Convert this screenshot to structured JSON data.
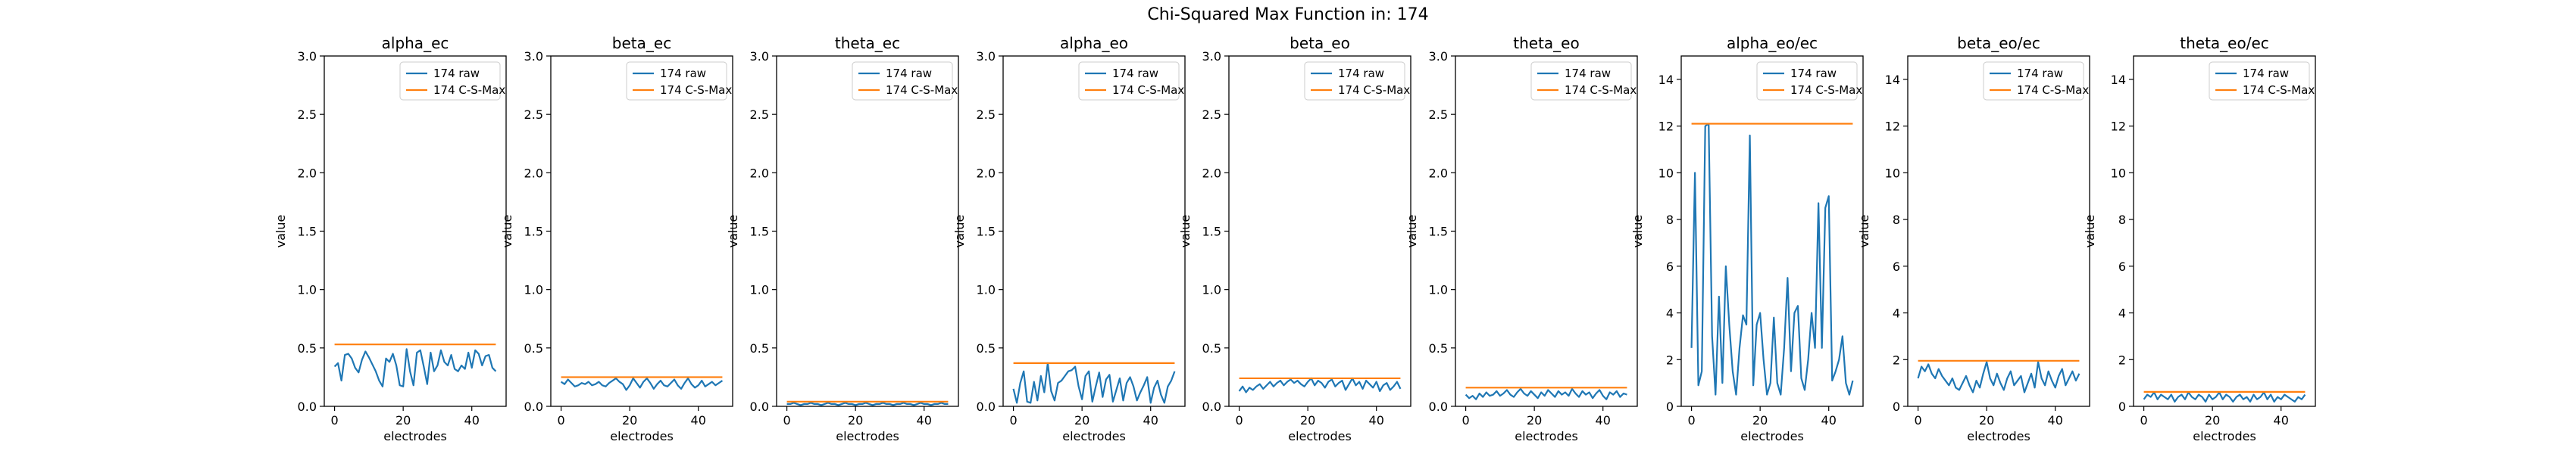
{
  "figure": {
    "title": "Chi-Squared Max Function in: 174",
    "colors": {
      "raw": "#1f77b4",
      "csmax": "#ff7f0e",
      "axis": "#000000",
      "legend_border": "#cccccc"
    }
  },
  "chart_data": [
    {
      "type": "line",
      "title": "alpha_ec",
      "xlabel": "electrodes",
      "ylabel": "value",
      "xlim": [
        -3,
        50
      ],
      "ylim": [
        0,
        3.0
      ],
      "xticks": [
        0,
        20,
        40
      ],
      "yticks": [
        0.0,
        0.5,
        1.0,
        1.5,
        2.0,
        2.5,
        3.0
      ],
      "ytick_labels": [
        "0.0",
        "0.5",
        "1.0",
        "1.5",
        "2.0",
        "2.5",
        "3.0"
      ],
      "legend": "top-right",
      "series": [
        {
          "name": "174 raw",
          "x_start": 0,
          "values": [
            0.34,
            0.37,
            0.22,
            0.44,
            0.45,
            0.41,
            0.33,
            0.29,
            0.4,
            0.47,
            0.42,
            0.36,
            0.3,
            0.22,
            0.17,
            0.41,
            0.38,
            0.45,
            0.35,
            0.18,
            0.17,
            0.49,
            0.3,
            0.18,
            0.46,
            0.48,
            0.34,
            0.19,
            0.46,
            0.3,
            0.35,
            0.48,
            0.38,
            0.35,
            0.44,
            0.32,
            0.3,
            0.35,
            0.32,
            0.46,
            0.33,
            0.48,
            0.45,
            0.35,
            0.43,
            0.44,
            0.33,
            0.3
          ]
        },
        {
          "name": "174 C-S-Max",
          "x": [
            0,
            47
          ],
          "values": [
            0.53,
            0.53
          ]
        }
      ]
    },
    {
      "type": "line",
      "title": "beta_ec",
      "xlabel": "electrodes",
      "ylabel": "value",
      "xlim": [
        -3,
        50
      ],
      "ylim": [
        0,
        3.0
      ],
      "xticks": [
        0,
        20,
        40
      ],
      "yticks": [
        0.0,
        0.5,
        1.0,
        1.5,
        2.0,
        2.5,
        3.0
      ],
      "ytick_labels": [
        "0.0",
        "0.5",
        "1.0",
        "1.5",
        "2.0",
        "2.5",
        "3.0"
      ],
      "legend": "top-right",
      "series": [
        {
          "name": "174 raw",
          "x_start": 0,
          "values": [
            0.21,
            0.19,
            0.23,
            0.2,
            0.17,
            0.18,
            0.2,
            0.19,
            0.21,
            0.18,
            0.19,
            0.21,
            0.18,
            0.17,
            0.2,
            0.22,
            0.24,
            0.21,
            0.19,
            0.14,
            0.18,
            0.24,
            0.2,
            0.16,
            0.21,
            0.24,
            0.2,
            0.15,
            0.19,
            0.22,
            0.18,
            0.17,
            0.2,
            0.23,
            0.18,
            0.15,
            0.2,
            0.24,
            0.19,
            0.16,
            0.18,
            0.22,
            0.17,
            0.19,
            0.21,
            0.18,
            0.2,
            0.22
          ]
        },
        {
          "name": "174 C-S-Max",
          "x": [
            0,
            47
          ],
          "values": [
            0.25,
            0.25
          ]
        }
      ]
    },
    {
      "type": "line",
      "title": "theta_ec",
      "xlabel": "electrodes",
      "ylabel": "value",
      "xlim": [
        -3,
        50
      ],
      "ylim": [
        0,
        3.0
      ],
      "xticks": [
        0,
        20,
        40
      ],
      "yticks": [
        0.0,
        0.5,
        1.0,
        1.5,
        2.0,
        2.5,
        3.0
      ],
      "ytick_labels": [
        "0.0",
        "0.5",
        "1.0",
        "1.5",
        "2.0",
        "2.5",
        "3.0"
      ],
      "legend": "top-right",
      "series": [
        {
          "name": "174 raw",
          "x_start": 0,
          "values": [
            0.02,
            0.02,
            0.03,
            0.02,
            0.01,
            0.02,
            0.02,
            0.03,
            0.02,
            0.02,
            0.01,
            0.02,
            0.03,
            0.02,
            0.02,
            0.01,
            0.02,
            0.03,
            0.02,
            0.02,
            0.01,
            0.02,
            0.02,
            0.03,
            0.02,
            0.01,
            0.02,
            0.02,
            0.03,
            0.02,
            0.02,
            0.01,
            0.02,
            0.02,
            0.03,
            0.02,
            0.02,
            0.01,
            0.02,
            0.03,
            0.02,
            0.02,
            0.01,
            0.02,
            0.02,
            0.03,
            0.02,
            0.02
          ]
        },
        {
          "name": "174 C-S-Max",
          "x": [
            0,
            47
          ],
          "values": [
            0.04,
            0.04
          ]
        }
      ]
    },
    {
      "type": "line",
      "title": "alpha_eo",
      "xlabel": "electrodes",
      "ylabel": "value",
      "xlim": [
        -3,
        50
      ],
      "ylim": [
        0,
        3.0
      ],
      "xticks": [
        0,
        20,
        40
      ],
      "yticks": [
        0.0,
        0.5,
        1.0,
        1.5,
        2.0,
        2.5,
        3.0
      ],
      "ytick_labels": [
        "0.0",
        "0.5",
        "1.0",
        "1.5",
        "2.0",
        "2.5",
        "3.0"
      ],
      "legend": "top-right",
      "series": [
        {
          "name": "174 raw",
          "x_start": 0,
          "values": [
            0.15,
            0.03,
            0.2,
            0.3,
            0.04,
            0.03,
            0.21,
            0.05,
            0.26,
            0.12,
            0.37,
            0.13,
            0.05,
            0.2,
            0.22,
            0.26,
            0.3,
            0.31,
            0.34,
            0.17,
            0.06,
            0.26,
            0.3,
            0.04,
            0.17,
            0.29,
            0.08,
            0.23,
            0.27,
            0.04,
            0.14,
            0.24,
            0.05,
            0.2,
            0.25,
            0.17,
            0.05,
            0.12,
            0.18,
            0.25,
            0.03,
            0.16,
            0.22,
            0.1,
            0.03,
            0.17,
            0.22,
            0.3
          ]
        },
        {
          "name": "174 C-S-Max",
          "x": [
            0,
            47
          ],
          "values": [
            0.37,
            0.37
          ]
        }
      ]
    },
    {
      "type": "line",
      "title": "beta_eo",
      "xlabel": "electrodes",
      "ylabel": "value",
      "xlim": [
        -3,
        50
      ],
      "ylim": [
        0,
        3.0
      ],
      "xticks": [
        0,
        20,
        40
      ],
      "yticks": [
        0.0,
        0.5,
        1.0,
        1.5,
        2.0,
        2.5,
        3.0
      ],
      "ytick_labels": [
        "0.0",
        "0.5",
        "1.0",
        "1.5",
        "2.0",
        "2.5",
        "3.0"
      ],
      "legend": "top-right",
      "series": [
        {
          "name": "174 raw",
          "x_start": 0,
          "values": [
            0.13,
            0.17,
            0.12,
            0.16,
            0.14,
            0.17,
            0.19,
            0.15,
            0.18,
            0.21,
            0.17,
            0.2,
            0.22,
            0.18,
            0.21,
            0.23,
            0.2,
            0.22,
            0.19,
            0.17,
            0.21,
            0.24,
            0.18,
            0.22,
            0.2,
            0.16,
            0.21,
            0.23,
            0.17,
            0.2,
            0.22,
            0.14,
            0.19,
            0.24,
            0.18,
            0.21,
            0.15,
            0.22,
            0.19,
            0.16,
            0.21,
            0.13,
            0.18,
            0.2,
            0.14,
            0.17,
            0.21,
            0.15
          ]
        },
        {
          "name": "174 C-S-Max",
          "x": [
            0,
            47
          ],
          "values": [
            0.24,
            0.24
          ]
        }
      ]
    },
    {
      "type": "line",
      "title": "theta_eo",
      "xlabel": "electrodes",
      "ylabel": "value",
      "xlim": [
        -3,
        50
      ],
      "ylim": [
        0,
        3.0
      ],
      "xticks": [
        0,
        20,
        40
      ],
      "yticks": [
        0.0,
        0.5,
        1.0,
        1.5,
        2.0,
        2.5,
        3.0
      ],
      "ytick_labels": [
        "0.0",
        "0.5",
        "1.0",
        "1.5",
        "2.0",
        "2.5",
        "3.0"
      ],
      "legend": "top-right",
      "series": [
        {
          "name": "174 raw",
          "x_start": 0,
          "values": [
            0.1,
            0.07,
            0.09,
            0.06,
            0.11,
            0.08,
            0.12,
            0.09,
            0.1,
            0.13,
            0.09,
            0.11,
            0.14,
            0.1,
            0.08,
            0.12,
            0.15,
            0.11,
            0.09,
            0.13,
            0.1,
            0.07,
            0.12,
            0.09,
            0.14,
            0.11,
            0.08,
            0.13,
            0.1,
            0.12,
            0.09,
            0.15,
            0.11,
            0.08,
            0.13,
            0.1,
            0.12,
            0.07,
            0.11,
            0.14,
            0.09,
            0.06,
            0.12,
            0.1,
            0.13,
            0.08,
            0.11,
            0.1
          ]
        },
        {
          "name": "174 C-S-Max",
          "x": [
            0,
            47
          ],
          "values": [
            0.16,
            0.16
          ]
        }
      ]
    },
    {
      "type": "line",
      "title": "alpha_eo/ec",
      "xlabel": "electrodes",
      "ylabel": "value",
      "xlim": [
        -3,
        50
      ],
      "ylim": [
        0,
        15
      ],
      "xticks": [
        0,
        20,
        40
      ],
      "yticks": [
        0,
        2,
        4,
        6,
        8,
        10,
        12,
        14
      ],
      "ytick_labels": [
        "0",
        "2",
        "4",
        "6",
        "8",
        "10",
        "12",
        "14"
      ],
      "legend": "top-right",
      "series": [
        {
          "name": "174 raw",
          "x_start": 0,
          "values": [
            2.5,
            10.0,
            0.9,
            1.5,
            12.0,
            12.1,
            3.0,
            0.5,
            4.7,
            1.0,
            6.0,
            3.5,
            1.5,
            0.5,
            2.5,
            3.9,
            3.5,
            11.6,
            0.9,
            3.5,
            4.0,
            2.0,
            0.5,
            1.0,
            3.8,
            1.0,
            0.5,
            2.5,
            5.5,
            1.5,
            4.0,
            4.3,
            1.2,
            0.7,
            2.0,
            4.0,
            2.5,
            8.7,
            2.5,
            8.5,
            9.0,
            1.1,
            1.5,
            2.0,
            3.0,
            1.0,
            0.5,
            1.1
          ]
        },
        {
          "name": "174 C-S-Max",
          "x": [
            0,
            47
          ],
          "values": [
            12.1,
            12.1
          ]
        }
      ]
    },
    {
      "type": "line",
      "title": "beta_eo/ec",
      "xlabel": "electrodes",
      "ylabel": "value",
      "xlim": [
        -3,
        50
      ],
      "ylim": [
        0,
        15
      ],
      "xticks": [
        0,
        20,
        40
      ],
      "yticks": [
        0,
        2,
        4,
        6,
        8,
        10,
        12,
        14
      ],
      "ytick_labels": [
        "0",
        "2",
        "4",
        "6",
        "8",
        "10",
        "12",
        "14"
      ],
      "legend": "top-right",
      "series": [
        {
          "name": "174 raw",
          "x_start": 0,
          "values": [
            1.2,
            1.7,
            1.5,
            1.8,
            1.4,
            1.2,
            1.6,
            1.3,
            1.1,
            0.9,
            1.2,
            0.8,
            0.7,
            1.0,
            1.3,
            0.9,
            0.6,
            1.1,
            0.8,
            1.4,
            1.9,
            1.2,
            0.9,
            1.4,
            1.0,
            0.7,
            1.2,
            1.5,
            0.9,
            1.1,
            1.3,
            0.6,
            1.0,
            1.4,
            0.8,
            1.9,
            1.2,
            0.9,
            1.5,
            1.1,
            0.8,
            1.3,
            1.6,
            0.9,
            1.2,
            1.5,
            1.1,
            1.4
          ]
        },
        {
          "name": "174 C-S-Max",
          "x": [
            0,
            47
          ],
          "values": [
            1.95,
            1.95
          ]
        }
      ]
    },
    {
      "type": "line",
      "title": "theta_eo/ec",
      "xlabel": "electrodes",
      "ylabel": "value",
      "xlim": [
        -3,
        50
      ],
      "ylim": [
        0,
        15
      ],
      "xticks": [
        0,
        20,
        40
      ],
      "yticks": [
        0,
        2,
        4,
        6,
        8,
        10,
        12,
        14
      ],
      "ytick_labels": [
        "0",
        "2",
        "4",
        "6",
        "8",
        "10",
        "12",
        "14"
      ],
      "legend": "top-right",
      "series": [
        {
          "name": "174 raw",
          "x_start": 0,
          "values": [
            0.3,
            0.5,
            0.4,
            0.6,
            0.3,
            0.5,
            0.4,
            0.3,
            0.5,
            0.2,
            0.4,
            0.5,
            0.3,
            0.6,
            0.4,
            0.3,
            0.5,
            0.4,
            0.2,
            0.5,
            0.3,
            0.4,
            0.6,
            0.3,
            0.5,
            0.4,
            0.2,
            0.4,
            0.5,
            0.3,
            0.4,
            0.2,
            0.5,
            0.3,
            0.4,
            0.6,
            0.3,
            0.5,
            0.2,
            0.4,
            0.3,
            0.5,
            0.4,
            0.3,
            0.2,
            0.4,
            0.3,
            0.5
          ]
        },
        {
          "name": "174 C-S-Max",
          "x": [
            0,
            47
          ],
          "values": [
            0.62,
            0.62
          ]
        }
      ]
    }
  ]
}
